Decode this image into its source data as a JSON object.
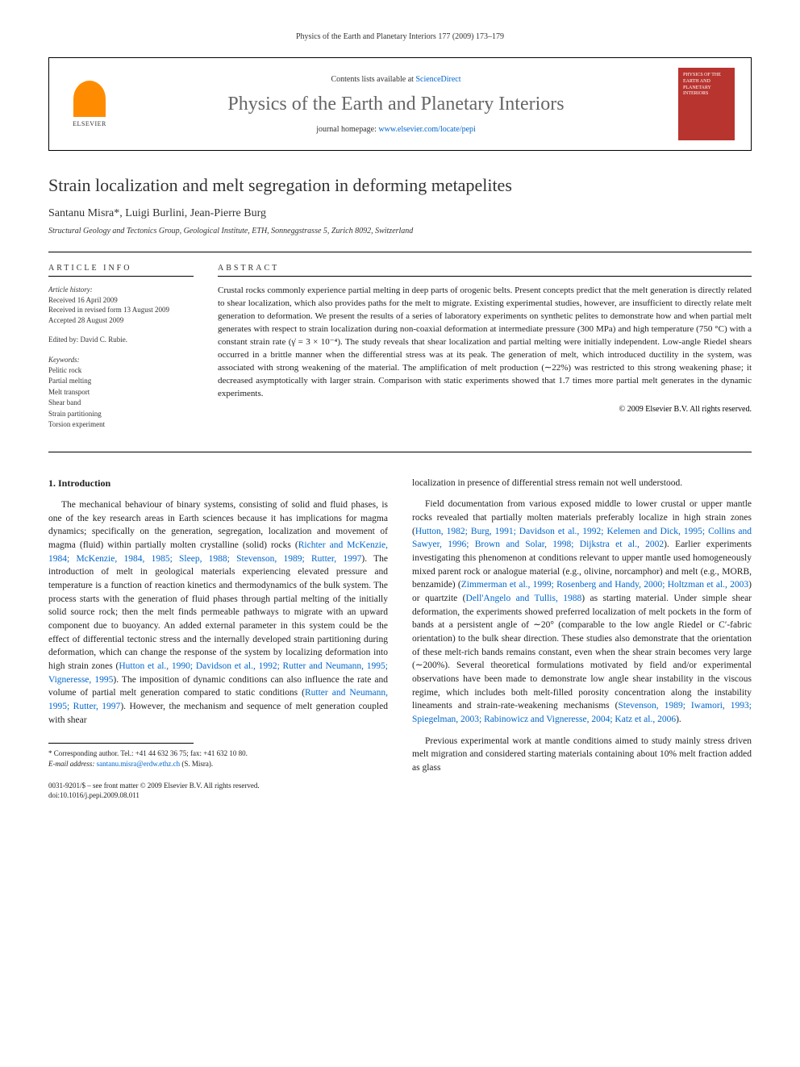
{
  "page_header": "Physics of the Earth and Planetary Interiors 177 (2009) 173–179",
  "journal_box": {
    "contents_prefix": "Contents lists available at ",
    "contents_link": "ScienceDirect",
    "journal_name": "Physics of the Earth and Planetary Interiors",
    "homepage_prefix": "journal homepage: ",
    "homepage_link": "www.elsevier.com/locate/pepi",
    "elsevier_label": "ELSEVIER",
    "cover_text": "PHYSICS OF THE EARTH AND PLANETARY INTERIORS"
  },
  "article": {
    "title": "Strain localization and melt segregation in deforming metapelites",
    "authors": "Santanu Misra*, Luigi Burlini, Jean-Pierre Burg",
    "affiliation": "Structural Geology and Tectonics Group, Geological Institute, ETH, Sonneggstrasse 5, Zurich 8092, Switzerland"
  },
  "info": {
    "heading": "ARTICLE INFO",
    "history_label": "Article history:",
    "received": "Received 16 April 2009",
    "revised": "Received in revised form 13 August 2009",
    "accepted": "Accepted 28 August 2009",
    "editor": "Edited by: David C. Rubie.",
    "keywords_label": "Keywords:",
    "keywords": [
      "Pelitic rock",
      "Partial melting",
      "Melt transport",
      "Shear band",
      "Strain partitioning",
      "Torsion experiment"
    ]
  },
  "abstract": {
    "heading": "ABSTRACT",
    "text": "Crustal rocks commonly experience partial melting in deep parts of orogenic belts. Present concepts predict that the melt generation is directly related to shear localization, which also provides paths for the melt to migrate. Existing experimental studies, however, are insufficient to directly relate melt generation to deformation. We present the results of a series of laboratory experiments on synthetic pelites to demonstrate how and when partial melt generates with respect to strain localization during non-coaxial deformation at intermediate pressure (300 MPa) and high temperature (750 °C) with a constant strain rate (γ̇ = 3 × 10⁻⁴). The study reveals that shear localization and partial melting were initially independent. Low-angle Riedel shears occurred in a brittle manner when the differential stress was at its peak. The generation of melt, which introduced ductility in the system, was associated with strong weakening of the material. The amplification of melt production (∼22%) was restricted to this strong weakening phase; it decreased asymptotically with larger strain. Comparison with static experiments showed that 1.7 times more partial melt generates in the dynamic experiments.",
    "copyright": "© 2009 Elsevier B.V. All rights reserved."
  },
  "body": {
    "section_number": "1.",
    "section_title": "Introduction",
    "col1_p1": "The mechanical behaviour of binary systems, consisting of solid and fluid phases, is one of the key research areas in Earth sciences because it has implications for magma dynamics; specifically on the generation, segregation, localization and movement of magma (fluid) within partially molten crystalline (solid) rocks (",
    "col1_p1_refs": "Richter and McKenzie, 1984; McKenzie, 1984, 1985; Sleep, 1988; Stevenson, 1989; Rutter, 1997",
    "col1_p1_b": "). The introduction of melt in geological materials experiencing elevated pressure and temperature is a function of reaction kinetics and thermodynamics of the bulk system. The process starts with the generation of fluid phases through partial melting of the initially solid source rock; then the melt finds permeable pathways to migrate with an upward component due to buoyancy. An added external parameter in this system could be the effect of differential tectonic stress and the internally developed strain partitioning during deformation, which can change the response of the system by localizing deformation into high strain zones (",
    "col1_p1_refs2": "Hutton et al., 1990; Davidson et al., 1992; Rutter and Neumann, 1995; Vigneresse, 1995",
    "col1_p1_c": "). The imposition of dynamic conditions can also influence the rate and volume of partial melt generation compared to static conditions (",
    "col1_p1_refs3": "Rutter and Neumann, 1995; Rutter, 1997",
    "col1_p1_d": "). However, the mechanism and sequence of melt generation coupled with shear",
    "col2_p1": "localization in presence of differential stress remain not well understood.",
    "col2_p2a": "Field documentation from various exposed middle to lower crustal or upper mantle rocks revealed that partially molten materials preferably localize in high strain zones (",
    "col2_p2_refs": "Hutton, 1982; Burg, 1991; Davidson et al., 1992; Kelemen and Dick, 1995; Collins and Sawyer, 1996; Brown and Solar, 1998; Dijkstra et al., 2002",
    "col2_p2b": "). Earlier experiments investigating this phenomenon at conditions relevant to upper mantle used homogeneously mixed parent rock or analogue material (e.g., olivine, norcamphor) and melt (e.g., MORB, benzamide) (",
    "col2_p2_refs2": "Zimmerman et al., 1999; Rosenberg and Handy, 2000; Holtzman et al., 2003",
    "col2_p2c": ") or quartzite (",
    "col2_p2_refs3": "Dell'Angelo and Tullis, 1988",
    "col2_p2d": ") as starting material. Under simple shear deformation, the experiments showed preferred localization of melt pockets in the form of bands at a persistent angle of ∼20° (comparable to the low angle Riedel or C′-fabric orientation) to the bulk shear direction. These studies also demonstrate that the orientation of these melt-rich bands remains constant, even when the shear strain becomes very large (∼200%). Several theoretical formulations motivated by field and/or experimental observations have been made to demonstrate low angle shear instability in the viscous regime, which includes both melt-filled porosity concentration along the instability lineaments and strain-rate-weakening mechanisms (",
    "col2_p2_refs4": "Stevenson, 1989; Iwamori, 1993; Spiegelman, 2003; Rabinowicz and Vigneresse, 2004; Katz et al., 2006",
    "col2_p2e": ").",
    "col2_p3": "Previous experimental work at mantle conditions aimed to study mainly stress driven melt migration and considered starting materials containing about 10% melt fraction added as glass"
  },
  "footer": {
    "corresponding_label": "* Corresponding author. Tel.: +41 44 632 36 75; fax: +41 632 10 80.",
    "email_label": "E-mail address: ",
    "email": "santanu.misra@erdw.ethz.ch",
    "email_suffix": " (S. Misra).",
    "front_matter": "0031-9201/$ – see front matter © 2009 Elsevier B.V. All rights reserved.",
    "doi": "doi:10.1016/j.pepi.2009.08.011"
  }
}
